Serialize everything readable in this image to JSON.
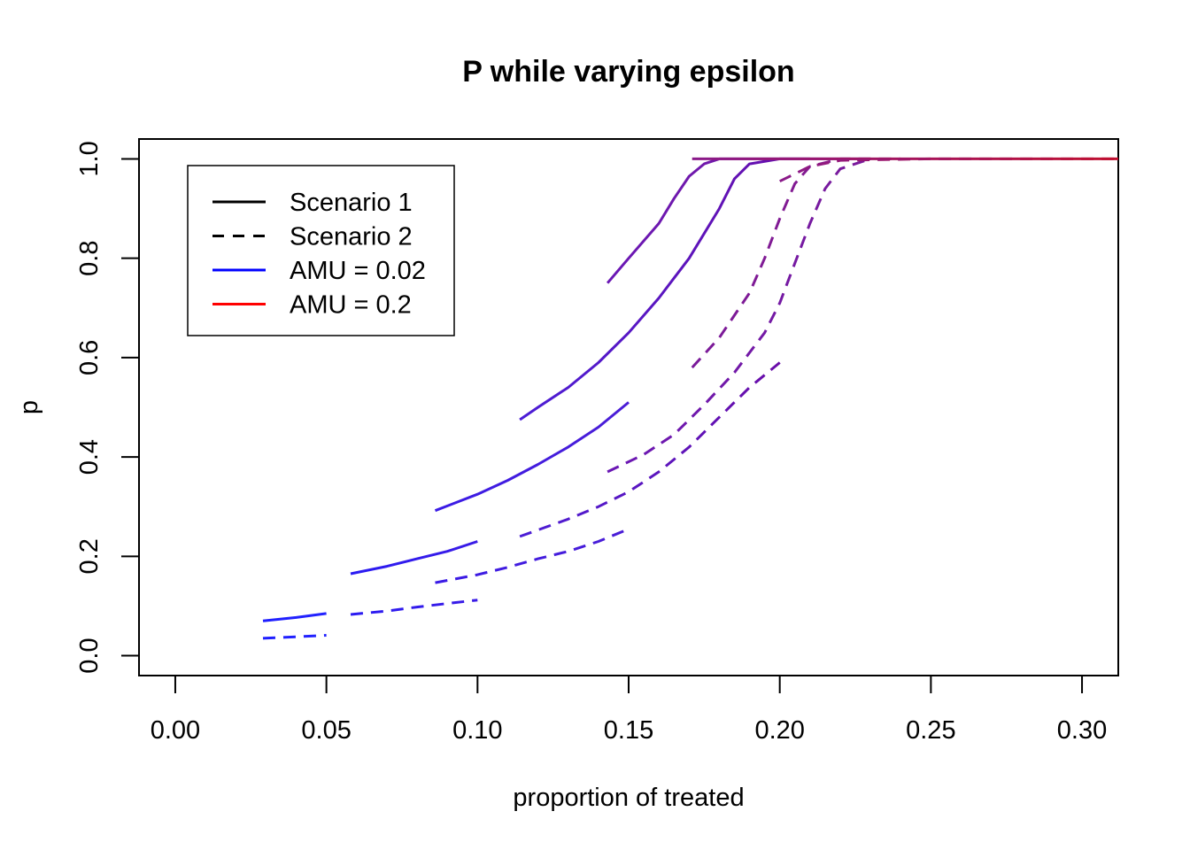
{
  "chart_data": {
    "type": "line",
    "title": "P while varying epsilon",
    "xlabel": "proportion of treated",
    "ylabel": "p",
    "xlim": [
      -0.012,
      0.312
    ],
    "ylim": [
      -0.04,
      1.04
    ],
    "xticks": [
      "0.00",
      "0.05",
      "0.10",
      "0.15",
      "0.20",
      "0.25",
      "0.30"
    ],
    "xtick_values": [
      0.0,
      0.05,
      0.1,
      0.15,
      0.2,
      0.25,
      0.3
    ],
    "yticks": [
      "0.0",
      "0.2",
      "0.4",
      "0.6",
      "0.8",
      "1.0"
    ],
    "ytick_values": [
      0.0,
      0.2,
      0.4,
      0.6,
      0.8,
      1.0
    ],
    "grid": false,
    "legend": {
      "position": "top-left",
      "entries": [
        {
          "label": "Scenario 1",
          "color": "#000000",
          "dash": "solid"
        },
        {
          "label": "Scenario 2",
          "color": "#000000",
          "dash": "dashed"
        },
        {
          "label": "AMU = 0.02",
          "color": "#0000FF",
          "dash": "solid"
        },
        {
          "label": "AMU = 0.2",
          "color": "#FF0000",
          "dash": "solid"
        }
      ]
    },
    "series": [
      {
        "dash": "solid",
        "color_start": "#1F1FFF",
        "color_end": "#2323FF",
        "points": [
          [
            0.029,
            0.07
          ],
          [
            0.04,
            0.077
          ],
          [
            0.05,
            0.085
          ]
        ]
      },
      {
        "dash": "dashed",
        "color_start": "#1F1FFF",
        "color_end": "#2323FF",
        "points": [
          [
            0.029,
            0.035
          ],
          [
            0.04,
            0.038
          ],
          [
            0.05,
            0.041
          ]
        ]
      },
      {
        "dash": "solid",
        "color_start": "#2A1BF2",
        "color_end": "#3A1BE6",
        "points": [
          [
            0.058,
            0.165
          ],
          [
            0.07,
            0.18
          ],
          [
            0.08,
            0.195
          ],
          [
            0.09,
            0.21
          ],
          [
            0.1,
            0.23
          ]
        ]
      },
      {
        "dash": "dashed",
        "color_start": "#2A1BF2",
        "color_end": "#3A1BE6",
        "points": [
          [
            0.058,
            0.083
          ],
          [
            0.07,
            0.09
          ],
          [
            0.08,
            0.098
          ],
          [
            0.09,
            0.105
          ],
          [
            0.1,
            0.112
          ]
        ]
      },
      {
        "dash": "solid",
        "color_start": "#3A1BE6",
        "color_end": "#4B1DD6",
        "points": [
          [
            0.086,
            0.292
          ],
          [
            0.1,
            0.325
          ],
          [
            0.11,
            0.353
          ],
          [
            0.12,
            0.385
          ],
          [
            0.13,
            0.42
          ],
          [
            0.14,
            0.46
          ],
          [
            0.15,
            0.51
          ]
        ]
      },
      {
        "dash": "dashed",
        "color_start": "#3A1BE6",
        "color_end": "#4B1DD6",
        "points": [
          [
            0.086,
            0.147
          ],
          [
            0.1,
            0.163
          ],
          [
            0.11,
            0.178
          ],
          [
            0.12,
            0.195
          ],
          [
            0.13,
            0.21
          ],
          [
            0.14,
            0.23
          ],
          [
            0.15,
            0.255
          ]
        ]
      },
      {
        "dash": "solid",
        "color_start": "#4B1DD6",
        "color_end": "#6A0DA8",
        "points": [
          [
            0.114,
            0.475
          ],
          [
            0.12,
            0.5
          ],
          [
            0.13,
            0.54
          ],
          [
            0.14,
            0.59
          ],
          [
            0.15,
            0.65
          ],
          [
            0.16,
            0.72
          ],
          [
            0.17,
            0.8
          ],
          [
            0.18,
            0.9
          ],
          [
            0.185,
            0.96
          ],
          [
            0.19,
            0.99
          ],
          [
            0.2,
            1.0
          ],
          [
            0.21,
            1.0
          ]
        ]
      },
      {
        "dash": "dashed",
        "color_start": "#4B1DD6",
        "color_end": "#6A0DA8",
        "points": [
          [
            0.114,
            0.24
          ],
          [
            0.13,
            0.275
          ],
          [
            0.14,
            0.3
          ],
          [
            0.15,
            0.33
          ],
          [
            0.16,
            0.37
          ],
          [
            0.17,
            0.42
          ],
          [
            0.18,
            0.48
          ],
          [
            0.19,
            0.54
          ],
          [
            0.2,
            0.59
          ]
        ]
      },
      {
        "dash": "solid",
        "color_start": "#6A17B5",
        "color_end": "#7A1A9A",
        "points": [
          [
            0.143,
            0.75
          ],
          [
            0.15,
            0.8
          ],
          [
            0.16,
            0.87
          ],
          [
            0.165,
            0.92
          ],
          [
            0.17,
            0.965
          ],
          [
            0.175,
            0.99
          ],
          [
            0.18,
            1.0
          ],
          [
            0.2,
            1.0
          ],
          [
            0.23,
            1.0
          ]
        ]
      },
      {
        "dash": "dashed",
        "color_start": "#6A17B5",
        "color_end": "#7A1A9A",
        "points": [
          [
            0.143,
            0.37
          ],
          [
            0.155,
            0.405
          ],
          [
            0.165,
            0.445
          ],
          [
            0.175,
            0.505
          ],
          [
            0.185,
            0.57
          ],
          [
            0.195,
            0.65
          ],
          [
            0.2,
            0.71
          ],
          [
            0.205,
            0.79
          ],
          [
            0.21,
            0.87
          ],
          [
            0.215,
            0.94
          ],
          [
            0.22,
            0.98
          ],
          [
            0.23,
            1.0
          ]
        ]
      },
      {
        "dash": "dashed",
        "color_start": "#7A1A9A",
        "color_end": "#8A1A8A",
        "points": [
          [
            0.171,
            0.58
          ],
          [
            0.18,
            0.64
          ],
          [
            0.19,
            0.73
          ],
          [
            0.195,
            0.8
          ],
          [
            0.2,
            0.88
          ],
          [
            0.205,
            0.95
          ],
          [
            0.21,
            0.985
          ],
          [
            0.22,
            1.0
          ],
          [
            0.24,
            1.0
          ]
        ]
      },
      {
        "dash": "solid",
        "color_start": "#8A1A8A",
        "color_end": "#C0102F",
        "points": [
          [
            0.171,
            1.0
          ],
          [
            0.2,
            1.0
          ],
          [
            0.25,
            1.0
          ],
          [
            0.28,
            1.0
          ],
          [
            0.312,
            1.0
          ]
        ]
      },
      {
        "dash": "dashed",
        "color_start": "#8A1A8A",
        "color_end": "#C0102F",
        "points": [
          [
            0.2,
            0.955
          ],
          [
            0.21,
            0.985
          ],
          [
            0.22,
            0.997
          ],
          [
            0.25,
            1.0
          ],
          [
            0.28,
            1.0
          ],
          [
            0.312,
            1.0
          ]
        ]
      }
    ]
  }
}
